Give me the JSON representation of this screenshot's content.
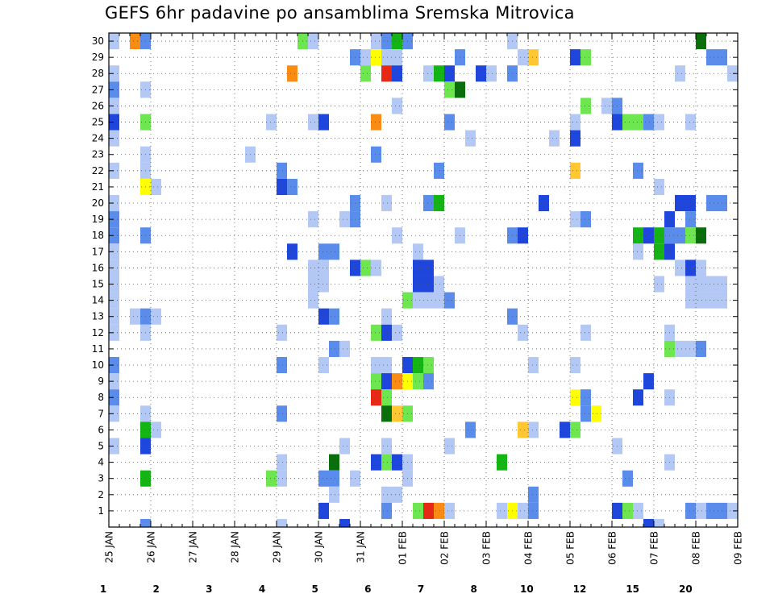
{
  "chart_data": {
    "type": "heatmap",
    "title": "GEFS 6hr padavine po ansamblima Sremska Mitrovica",
    "x_start": "25 JAN",
    "x_tick_labels": [
      "25 JAN",
      "26 JAN",
      "27 JAN",
      "28 JAN",
      "29 JAN",
      "30 JAN",
      "31 JAN",
      "01 FEB",
      "02 FEB",
      "03 FEB",
      "04 FEB",
      "05 FEB",
      "06 FEB",
      "07 FEB",
      "08 FEB",
      "09 FEB"
    ],
    "time_step_hours": 6,
    "y_tick_labels": [
      "1",
      "2",
      "3",
      "4",
      "5",
      "6",
      "7",
      "8",
      "9",
      "10",
      "11",
      "12",
      "13",
      "14",
      "15",
      "16",
      "17",
      "18",
      "19",
      "20",
      "21",
      "22",
      "23",
      "24",
      "25",
      "26",
      "27",
      "28",
      "29",
      "30"
    ],
    "grid": true,
    "colorbar": {
      "placement": "bottom",
      "labels": [
        "1",
        "2",
        "3",
        "4",
        "5",
        "6",
        "7",
        "8",
        "10",
        "12",
        "15",
        "20"
      ],
      "colors": [
        "#b4c8f5",
        "#5a8ceb",
        "#1e46dc",
        "#6ee650",
        "#14b414",
        "#0a6e0a",
        "#ffff00",
        "#ffc832",
        "#fa8c14",
        "#e62814",
        "#aa0a0a",
        "#6e0000"
      ]
    },
    "cells": [
      [
        0,
        30,
        1
      ],
      [
        2,
        30,
        9
      ],
      [
        3,
        30,
        2
      ],
      [
        18,
        30,
        4
      ],
      [
        19,
        30,
        1
      ],
      [
        25,
        30,
        1
      ],
      [
        26,
        30,
        2
      ],
      [
        27,
        30,
        5
      ],
      [
        28,
        30,
        2
      ],
      [
        38,
        30,
        1
      ],
      [
        56,
        30,
        6
      ],
      [
        23,
        29,
        2
      ],
      [
        24,
        29,
        1
      ],
      [
        25,
        29,
        7
      ],
      [
        26,
        29,
        1
      ],
      [
        27,
        29,
        1
      ],
      [
        33,
        29,
        2
      ],
      [
        39,
        29,
        1
      ],
      [
        40,
        29,
        8
      ],
      [
        44,
        29,
        3
      ],
      [
        45,
        29,
        4
      ],
      [
        57,
        29,
        2
      ],
      [
        58,
        29,
        2
      ],
      [
        0,
        28,
        1
      ],
      [
        17,
        28,
        9
      ],
      [
        24,
        28,
        4
      ],
      [
        26,
        28,
        10
      ],
      [
        27,
        28,
        3
      ],
      [
        30,
        28,
        1
      ],
      [
        31,
        28,
        5
      ],
      [
        32,
        28,
        3
      ],
      [
        35,
        28,
        3
      ],
      [
        36,
        28,
        1
      ],
      [
        38,
        28,
        2
      ],
      [
        54,
        28,
        1
      ],
      [
        59,
        28,
        1
      ],
      [
        0,
        27,
        2
      ],
      [
        3,
        27,
        1
      ],
      [
        32,
        27,
        4
      ],
      [
        33,
        27,
        6
      ],
      [
        0,
        26,
        1
      ],
      [
        27,
        26,
        1
      ],
      [
        45,
        26,
        4
      ],
      [
        47,
        26,
        1
      ],
      [
        48,
        26,
        2
      ],
      [
        0,
        25,
        3
      ],
      [
        3,
        25,
        4
      ],
      [
        15,
        25,
        1
      ],
      [
        19,
        25,
        1
      ],
      [
        20,
        25,
        3
      ],
      [
        25,
        25,
        9
      ],
      [
        32,
        25,
        2
      ],
      [
        44,
        25,
        1
      ],
      [
        48,
        25,
        3
      ],
      [
        49,
        25,
        4
      ],
      [
        50,
        25,
        4
      ],
      [
        51,
        25,
        2
      ],
      [
        52,
        25,
        1
      ],
      [
        55,
        25,
        1
      ],
      [
        0,
        24,
        1
      ],
      [
        34,
        24,
        1
      ],
      [
        42,
        24,
        1
      ],
      [
        44,
        24,
        3
      ],
      [
        3,
        23,
        1
      ],
      [
        13,
        23,
        1
      ],
      [
        25,
        23,
        2
      ],
      [
        0,
        22,
        1
      ],
      [
        3,
        22,
        1
      ],
      [
        16,
        22,
        2
      ],
      [
        31,
        22,
        2
      ],
      [
        44,
        22,
        8
      ],
      [
        50,
        22,
        2
      ],
      [
        3,
        21,
        7
      ],
      [
        4,
        21,
        1
      ],
      [
        16,
        21,
        3
      ],
      [
        17,
        21,
        2
      ],
      [
        52,
        21,
        1
      ],
      [
        0,
        20,
        1
      ],
      [
        23,
        20,
        2
      ],
      [
        26,
        20,
        1
      ],
      [
        30,
        20,
        2
      ],
      [
        31,
        20,
        5
      ],
      [
        41,
        20,
        3
      ],
      [
        54,
        20,
        3
      ],
      [
        55,
        20,
        3
      ],
      [
        57,
        20,
        2
      ],
      [
        58,
        20,
        2
      ],
      [
        0,
        19,
        2
      ],
      [
        19,
        19,
        1
      ],
      [
        22,
        19,
        1
      ],
      [
        23,
        19,
        2
      ],
      [
        44,
        19,
        1
      ],
      [
        45,
        19,
        2
      ],
      [
        53,
        19,
        3
      ],
      [
        55,
        19,
        2
      ],
      [
        0,
        18,
        2
      ],
      [
        3,
        18,
        2
      ],
      [
        27,
        18,
        1
      ],
      [
        33,
        18,
        1
      ],
      [
        38,
        18,
        2
      ],
      [
        39,
        18,
        3
      ],
      [
        50,
        18,
        5
      ],
      [
        51,
        18,
        3
      ],
      [
        52,
        18,
        5
      ],
      [
        53,
        18,
        2
      ],
      [
        54,
        18,
        2
      ],
      [
        55,
        18,
        4
      ],
      [
        56,
        18,
        6
      ],
      [
        0,
        17,
        1
      ],
      [
        17,
        17,
        3
      ],
      [
        20,
        17,
        2
      ],
      [
        21,
        17,
        2
      ],
      [
        29,
        17,
        1
      ],
      [
        50,
        17,
        1
      ],
      [
        52,
        17,
        5
      ],
      [
        53,
        17,
        3
      ],
      [
        0,
        16,
        1
      ],
      [
        19,
        16,
        1
      ],
      [
        20,
        16,
        1
      ],
      [
        23,
        16,
        3
      ],
      [
        24,
        16,
        4
      ],
      [
        25,
        16,
        1
      ],
      [
        29,
        16,
        3
      ],
      [
        30,
        16,
        3
      ],
      [
        54,
        16,
        1
      ],
      [
        55,
        16,
        3
      ],
      [
        56,
        16,
        1
      ],
      [
        0,
        15,
        1
      ],
      [
        19,
        15,
        1
      ],
      [
        20,
        15,
        1
      ],
      [
        29,
        15,
        3
      ],
      [
        30,
        15,
        3
      ],
      [
        31,
        15,
        1
      ],
      [
        52,
        15,
        1
      ],
      [
        55,
        15,
        1
      ],
      [
        56,
        15,
        1
      ],
      [
        57,
        15,
        1
      ],
      [
        58,
        15,
        1
      ],
      [
        0,
        14,
        1
      ],
      [
        19,
        14,
        1
      ],
      [
        28,
        14,
        4
      ],
      [
        29,
        14,
        1
      ],
      [
        30,
        14,
        1
      ],
      [
        31,
        14,
        1
      ],
      [
        32,
        14,
        2
      ],
      [
        55,
        14,
        1
      ],
      [
        56,
        14,
        1
      ],
      [
        57,
        14,
        1
      ],
      [
        58,
        14,
        1
      ],
      [
        0,
        13,
        1
      ],
      [
        2,
        13,
        1
      ],
      [
        3,
        13,
        2
      ],
      [
        4,
        13,
        1
      ],
      [
        20,
        13,
        3
      ],
      [
        21,
        13,
        2
      ],
      [
        26,
        13,
        1
      ],
      [
        38,
        13,
        2
      ],
      [
        0,
        12,
        1
      ],
      [
        3,
        12,
        1
      ],
      [
        16,
        12,
        1
      ],
      [
        25,
        12,
        4
      ],
      [
        26,
        12,
        3
      ],
      [
        27,
        12,
        1
      ],
      [
        39,
        12,
        1
      ],
      [
        45,
        12,
        1
      ],
      [
        53,
        12,
        1
      ],
      [
        21,
        11,
        2
      ],
      [
        22,
        11,
        1
      ],
      [
        53,
        11,
        4
      ],
      [
        54,
        11,
        1
      ],
      [
        55,
        11,
        1
      ],
      [
        56,
        11,
        2
      ],
      [
        0,
        10,
        2
      ],
      [
        16,
        10,
        2
      ],
      [
        20,
        10,
        1
      ],
      [
        25,
        10,
        1
      ],
      [
        26,
        10,
        1
      ],
      [
        28,
        10,
        3
      ],
      [
        29,
        10,
        5
      ],
      [
        30,
        10,
        4
      ],
      [
        40,
        10,
        1
      ],
      [
        44,
        10,
        1
      ],
      [
        0,
        9,
        1
      ],
      [
        25,
        9,
        4
      ],
      [
        26,
        9,
        3
      ],
      [
        27,
        9,
        9
      ],
      [
        28,
        9,
        7
      ],
      [
        29,
        9,
        4
      ],
      [
        30,
        9,
        2
      ],
      [
        51,
        9,
        3
      ],
      [
        0,
        8,
        2
      ],
      [
        25,
        8,
        10
      ],
      [
        26,
        8,
        4
      ],
      [
        44,
        8,
        7
      ],
      [
        45,
        8,
        2
      ],
      [
        50,
        8,
        3
      ],
      [
        53,
        8,
        1
      ],
      [
        0,
        7,
        1
      ],
      [
        3,
        7,
        1
      ],
      [
        16,
        7,
        2
      ],
      [
        26,
        7,
        6
      ],
      [
        27,
        7,
        8
      ],
      [
        28,
        7,
        4
      ],
      [
        45,
        7,
        2
      ],
      [
        46,
        7,
        7
      ],
      [
        3,
        6,
        5
      ],
      [
        4,
        6,
        1
      ],
      [
        34,
        6,
        2
      ],
      [
        39,
        6,
        8
      ],
      [
        40,
        6,
        1
      ],
      [
        43,
        6,
        3
      ],
      [
        44,
        6,
        4
      ],
      [
        0,
        5,
        1
      ],
      [
        3,
        5,
        3
      ],
      [
        22,
        5,
        1
      ],
      [
        26,
        5,
        1
      ],
      [
        32,
        5,
        1
      ],
      [
        48,
        5,
        1
      ],
      [
        16,
        4,
        1
      ],
      [
        21,
        4,
        6
      ],
      [
        25,
        4,
        3
      ],
      [
        26,
        4,
        4
      ],
      [
        27,
        4,
        3
      ],
      [
        28,
        4,
        1
      ],
      [
        37,
        4,
        5
      ],
      [
        53,
        4,
        1
      ],
      [
        3,
        3,
        5
      ],
      [
        15,
        3,
        4
      ],
      [
        16,
        3,
        1
      ],
      [
        20,
        3,
        2
      ],
      [
        21,
        3,
        2
      ],
      [
        23,
        3,
        1
      ],
      [
        28,
        3,
        1
      ],
      [
        49,
        3,
        2
      ],
      [
        21,
        2,
        1
      ],
      [
        26,
        2,
        1
      ],
      [
        27,
        2,
        1
      ],
      [
        40,
        2,
        2
      ],
      [
        20,
        1,
        3
      ],
      [
        26,
        1,
        2
      ],
      [
        29,
        1,
        4
      ],
      [
        30,
        1,
        10
      ],
      [
        31,
        1,
        9
      ],
      [
        32,
        1,
        1
      ],
      [
        37,
        1,
        1
      ],
      [
        38,
        1,
        7
      ],
      [
        39,
        1,
        1
      ],
      [
        40,
        1,
        2
      ],
      [
        48,
        1,
        3
      ],
      [
        49,
        1,
        4
      ],
      [
        50,
        1,
        1
      ],
      [
        55,
        1,
        2
      ],
      [
        56,
        1,
        1
      ],
      [
        57,
        1,
        2
      ],
      [
        58,
        1,
        2
      ],
      [
        59,
        1,
        1
      ],
      [
        3,
        0,
        2
      ],
      [
        16,
        0,
        1
      ],
      [
        22,
        0,
        3
      ],
      [
        51,
        0,
        3
      ],
      [
        52,
        0,
        1
      ]
    ]
  }
}
